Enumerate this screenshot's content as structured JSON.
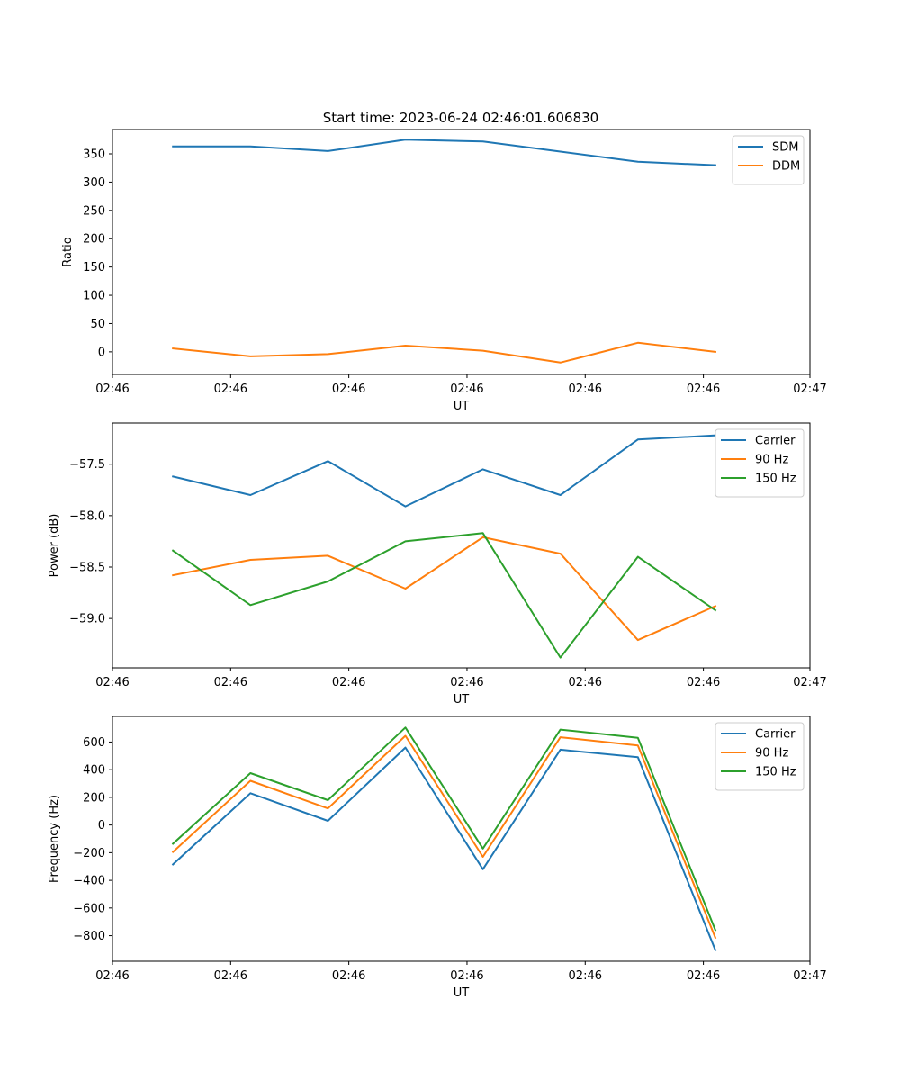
{
  "figure": {
    "title": "Start time: 2023-06-24 02:46:01.606830"
  },
  "colors": {
    "c0": "#1f77b4",
    "c1": "#ff7f0e",
    "c2": "#2ca02c"
  },
  "chart_data": [
    {
      "type": "line",
      "ylabel": "Ratio",
      "xlabel": "UT",
      "x": [
        1,
        2,
        3,
        4,
        5,
        6,
        7,
        8
      ],
      "xlim": [
        0.22,
        9.22
      ],
      "xticks": [
        0.22,
        1.745,
        3.27,
        4.795,
        6.32,
        7.845,
        9.22
      ],
      "xtick_labels": [
        "02:46",
        "02:46",
        "02:46",
        "02:46",
        "02:46",
        "02:46",
        "02:47"
      ],
      "ylim": [
        -40,
        393
      ],
      "yticks": [
        0,
        50,
        100,
        150,
        200,
        250,
        300,
        350
      ],
      "legend": "top-right",
      "series": [
        {
          "name": "SDM",
          "color": "#1f77b4",
          "values": [
            363,
            363,
            355,
            375,
            372,
            354,
            336,
            330
          ]
        },
        {
          "name": "DDM",
          "color": "#ff7f0e",
          "values": [
            6,
            -8,
            -4,
            11,
            2,
            -19,
            16,
            0
          ]
        }
      ]
    },
    {
      "type": "line",
      "ylabel": "Power (dB)",
      "xlabel": "UT",
      "x": [
        1,
        2,
        3,
        4,
        5,
        6,
        7,
        8
      ],
      "xlim": [
        0.22,
        9.22
      ],
      "xticks": [
        0.22,
        1.745,
        3.27,
        4.795,
        6.32,
        7.845,
        9.22
      ],
      "xtick_labels": [
        "02:46",
        "02:46",
        "02:46",
        "02:46",
        "02:46",
        "02:46",
        "02:47"
      ],
      "ylim": [
        -59.48,
        -57.1
      ],
      "yticks": [
        -59.0,
        -58.5,
        -58.0,
        -57.5
      ],
      "ytick_labels": [
        "−59.0",
        "−58.5",
        "−58.0",
        "−57.5"
      ],
      "legend": "top-right",
      "series": [
        {
          "name": "Carrier",
          "color": "#1f77b4",
          "values": [
            -57.62,
            -57.8,
            -57.47,
            -57.91,
            -57.55,
            -57.8,
            -57.26,
            -57.22
          ]
        },
        {
          "name": "90 Hz",
          "color": "#ff7f0e",
          "values": [
            -58.58,
            -58.43,
            -58.39,
            -58.71,
            -58.21,
            -58.37,
            -59.21,
            -58.88
          ]
        },
        {
          "name": "150 Hz",
          "color": "#2ca02c",
          "values": [
            -58.34,
            -58.87,
            -58.64,
            -58.25,
            -58.17,
            -59.38,
            -58.4,
            -58.92
          ]
        }
      ]
    },
    {
      "type": "line",
      "ylabel": "Frequency (Hz)",
      "xlabel": "UT",
      "x": [
        1,
        2,
        3,
        4,
        5,
        6,
        7,
        8
      ],
      "xlim": [
        0.22,
        9.22
      ],
      "xticks": [
        0.22,
        1.745,
        3.27,
        4.795,
        6.32,
        7.845,
        9.22
      ],
      "xtick_labels": [
        "02:46",
        "02:46",
        "02:46",
        "02:46",
        "02:46",
        "02:46",
        "02:47"
      ],
      "ylim": [
        -985,
        785
      ],
      "yticks": [
        -800,
        -600,
        -400,
        -200,
        0,
        200,
        400,
        600
      ],
      "ytick_labels": [
        "−800",
        "−600",
        "−400",
        "−200",
        "0",
        "200",
        "400",
        "600"
      ],
      "legend": "top-right",
      "series": [
        {
          "name": "Carrier",
          "color": "#1f77b4",
          "values": [
            -285,
            230,
            30,
            560,
            -320,
            545,
            490,
            -905
          ]
        },
        {
          "name": "90 Hz",
          "color": "#ff7f0e",
          "values": [
            -195,
            320,
            120,
            645,
            -230,
            635,
            575,
            -815
          ]
        },
        {
          "name": "150 Hz",
          "color": "#2ca02c",
          "values": [
            -135,
            375,
            180,
            705,
            -170,
            690,
            630,
            -760
          ]
        }
      ]
    }
  ]
}
